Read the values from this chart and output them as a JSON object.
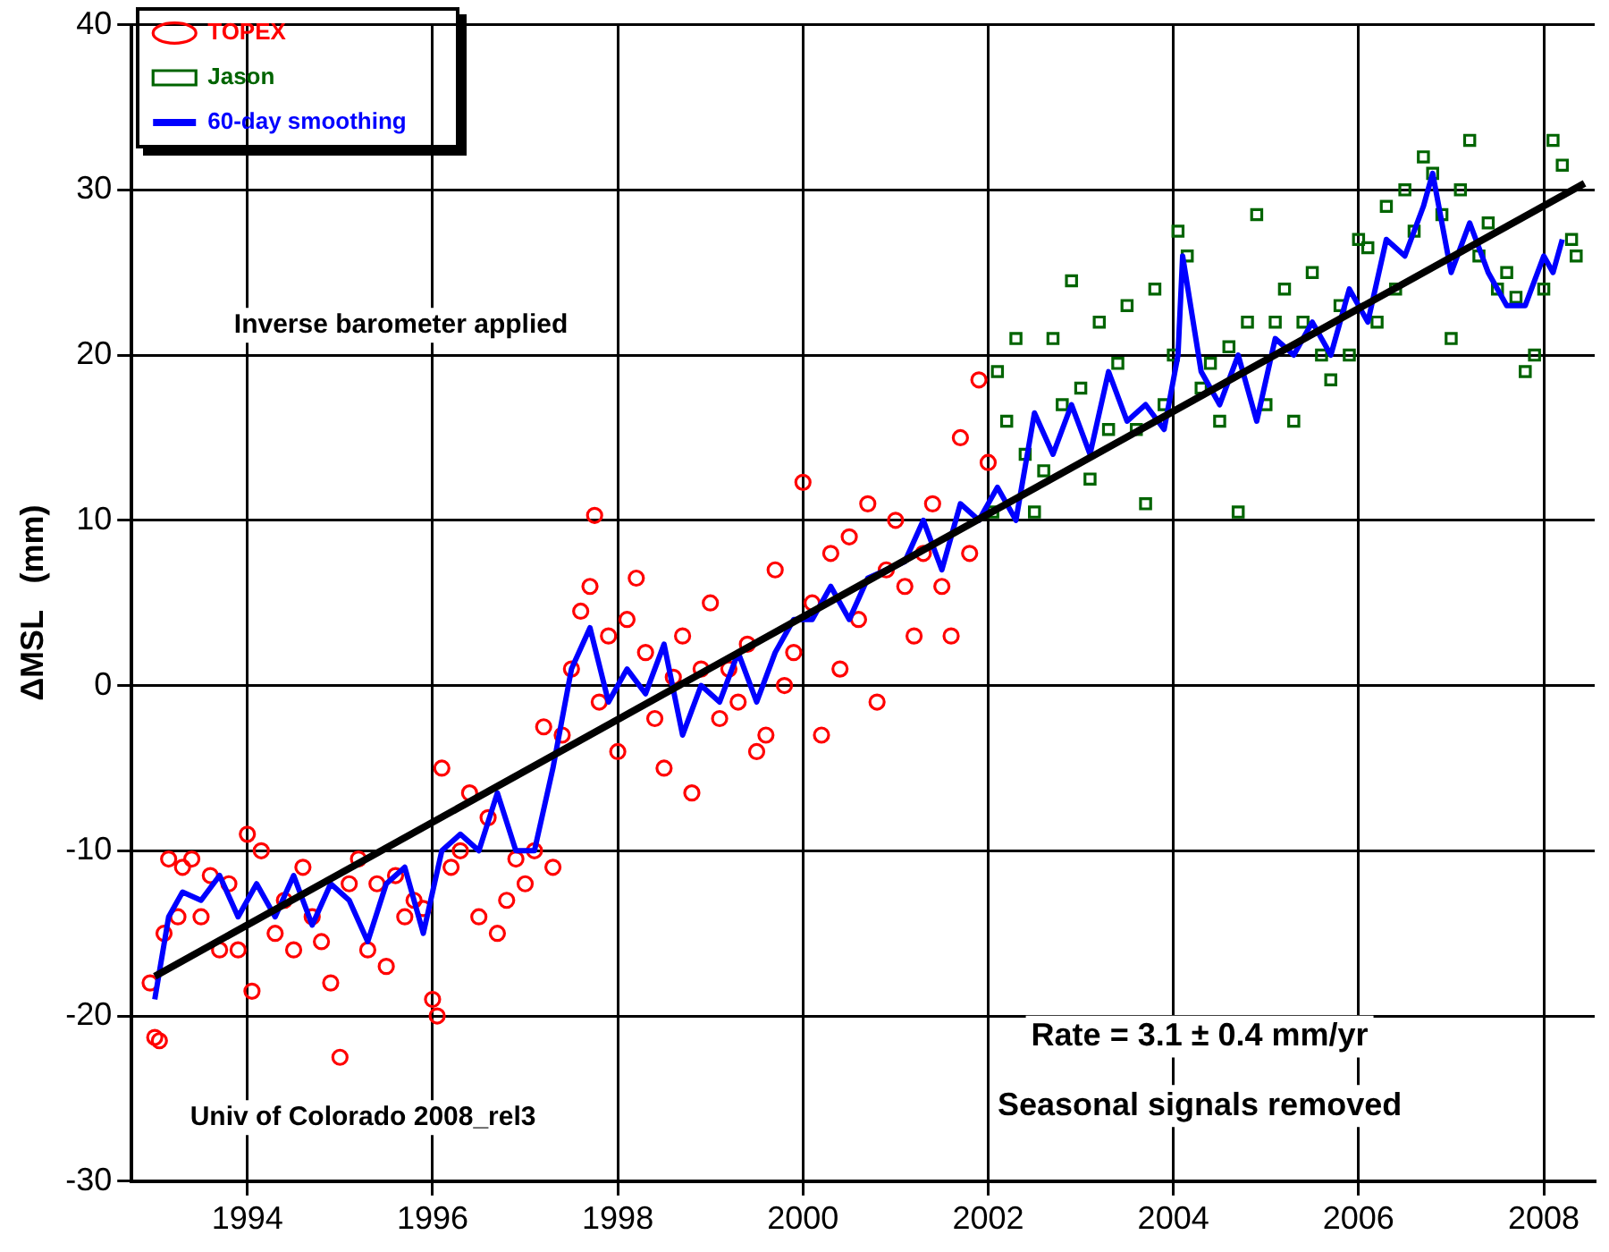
{
  "chart_data": {
    "type": "scatter",
    "ylabel": "ΔMSL   (mm)",
    "xlim": [
      1992.75,
      2008.55
    ],
    "xticks": [
      1994,
      1996,
      1998,
      2000,
      2002,
      2004,
      2006,
      2008
    ],
    "ylim": [
      -30,
      40
    ],
    "yticks": [
      -30,
      -20,
      -10,
      0,
      10,
      20,
      30,
      40
    ],
    "grid": true,
    "legend": "top left",
    "annotations": [
      "Inverse barometer applied",
      "Rate = 3.1 ± 0.4 mm/yr",
      "Seasonal signals removed",
      "Univ of Colorado 2008_rel3"
    ],
    "series": [
      {
        "name": "TOPEX",
        "marker": "circle",
        "color": "#ff0000",
        "x": [
          1992.95,
          1993.0,
          1993.05,
          1993.1,
          1993.15,
          1993.25,
          1993.3,
          1993.4,
          1993.5,
          1993.6,
          1993.7,
          1993.8,
          1993.9,
          1994.0,
          1994.05,
          1994.15,
          1994.3,
          1994.4,
          1994.5,
          1994.6,
          1994.7,
          1994.8,
          1994.9,
          1995.0,
          1995.1,
          1995.2,
          1995.3,
          1995.4,
          1995.5,
          1995.6,
          1995.7,
          1995.8,
          1995.9,
          1996.0,
          1996.05,
          1996.1,
          1996.2,
          1996.3,
          1996.4,
          1996.5,
          1996.6,
          1996.7,
          1996.8,
          1996.9,
          1997.0,
          1997.1,
          1997.2,
          1997.3,
          1997.4,
          1997.5,
          1997.6,
          1997.7,
          1997.75,
          1997.8,
          1997.9,
          1998.0,
          1998.1,
          1998.2,
          1998.3,
          1998.4,
          1998.5,
          1998.6,
          1998.7,
          1998.8,
          1998.9,
          1999.0,
          1999.1,
          1999.2,
          1999.3,
          1999.4,
          1999.5,
          1999.6,
          1999.7,
          1999.8,
          1999.9,
          2000.0,
          2000.1,
          2000.2,
          2000.3,
          2000.4,
          2000.5,
          2000.6,
          2000.7,
          2000.8,
          2000.9,
          2001.0,
          2001.1,
          2001.2,
          2001.3,
          2001.4,
          2001.5,
          2001.6,
          2001.7,
          2001.8,
          2001.9,
          2002.0
        ],
        "values": [
          -18,
          -21.3,
          -21.5,
          -15,
          -10.5,
          -14,
          -11,
          -10.5,
          -14,
          -11.5,
          -16,
          -12,
          -16,
          -9,
          -18.5,
          -10,
          -15,
          -13,
          -16,
          -11,
          -14,
          -15.5,
          -18,
          -22.5,
          -12,
          -10.5,
          -16,
          -12,
          -17,
          -11.5,
          -14,
          -13,
          -13.5,
          -19,
          -20,
          -5,
          -11,
          -10,
          -6.5,
          -14,
          -8,
          -15,
          -13,
          -10.5,
          -12,
          -10,
          -2.5,
          -11,
          -3,
          1,
          4.5,
          6,
          10.3,
          -1,
          3,
          -4,
          4,
          6.5,
          2,
          -2,
          -5,
          0.5,
          3,
          -6.5,
          1,
          5,
          -2,
          1,
          -1,
          2.5,
          -4,
          -3,
          7,
          0,
          2,
          12.3,
          5,
          -3,
          8,
          1,
          9,
          4,
          11,
          -1,
          7,
          10,
          6,
          3,
          8,
          11,
          6,
          3,
          15,
          8,
          18.5,
          13.5
        ]
      },
      {
        "name": "Jason",
        "marker": "square",
        "color": "#006400",
        "x": [
          2002.05,
          2002.1,
          2002.2,
          2002.3,
          2002.4,
          2002.5,
          2002.6,
          2002.7,
          2002.8,
          2002.9,
          2003.0,
          2003.1,
          2003.2,
          2003.3,
          2003.4,
          2003.5,
          2003.6,
          2003.7,
          2003.8,
          2003.9,
          2004.0,
          2004.05,
          2004.15,
          2004.3,
          2004.4,
          2004.5,
          2004.6,
          2004.7,
          2004.8,
          2004.9,
          2005.0,
          2005.1,
          2005.2,
          2005.3,
          2005.4,
          2005.5,
          2005.6,
          2005.7,
          2005.8,
          2005.9,
          2006.0,
          2006.1,
          2006.2,
          2006.3,
          2006.4,
          2006.5,
          2006.6,
          2006.7,
          2006.8,
          2006.9,
          2007.0,
          2007.1,
          2007.2,
          2007.3,
          2007.4,
          2007.5,
          2007.6,
          2007.7,
          2007.8,
          2007.9,
          2008.0,
          2008.1,
          2008.2,
          2008.3,
          2008.35
        ],
        "values": [
          10.5,
          19,
          16,
          21,
          14,
          10.5,
          13,
          21,
          17,
          24.5,
          18,
          12.5,
          22,
          15.5,
          19.5,
          23,
          15.5,
          11,
          24,
          17,
          20,
          27.5,
          26,
          18,
          19.5,
          16,
          20.5,
          10.5,
          22,
          28.5,
          17,
          22,
          24,
          16,
          22,
          25,
          20,
          18.5,
          23,
          20,
          27,
          26.5,
          22,
          29,
          24,
          30,
          27.5,
          32,
          31,
          28.5,
          21,
          30,
          33,
          26,
          28,
          24,
          25,
          23.5,
          19,
          20,
          24,
          33,
          31.5,
          27,
          26
        ]
      },
      {
        "name": "60-day smoothing",
        "type": "line",
        "marker": "none",
        "color": "#0000ff",
        "x": [
          1993.0,
          1993.15,
          1993.3,
          1993.5,
          1993.7,
          1993.9,
          1994.1,
          1994.3,
          1994.5,
          1994.7,
          1994.9,
          1995.1,
          1995.3,
          1995.5,
          1995.7,
          1995.9,
          1996.1,
          1996.3,
          1996.5,
          1996.7,
          1996.9,
          1997.1,
          1997.3,
          1997.5,
          1997.7,
          1997.9,
          1998.1,
          1998.3,
          1998.5,
          1998.7,
          1998.9,
          1999.1,
          1999.3,
          1999.5,
          1999.7,
          1999.9,
          2000.1,
          2000.3,
          2000.5,
          2000.7,
          2000.9,
          2001.1,
          2001.3,
          2001.5,
          2001.7,
          2001.9,
          2002.1,
          2002.3,
          2002.5,
          2002.7,
          2002.9,
          2003.1,
          2003.3,
          2003.5,
          2003.7,
          2003.9,
          2004.05,
          2004.1,
          2004.3,
          2004.5,
          2004.7,
          2004.9,
          2005.1,
          2005.3,
          2005.5,
          2005.7,
          2005.9,
          2006.1,
          2006.3,
          2006.5,
          2006.7,
          2006.8,
          2007.0,
          2007.2,
          2007.4,
          2007.6,
          2007.8,
          2008.0,
          2008.1,
          2008.2
        ],
        "values": [
          -19,
          -14,
          -12.5,
          -13,
          -11.5,
          -14,
          -12,
          -14,
          -11.5,
          -14.5,
          -12,
          -13,
          -15.5,
          -12,
          -11,
          -15,
          -10,
          -9,
          -10,
          -6.5,
          -10,
          -10,
          -5,
          1,
          3.5,
          -1,
          1,
          -0.5,
          2.5,
          -3,
          0,
          -1,
          2,
          -1,
          2,
          4,
          4,
          6,
          4,
          6.5,
          7,
          7.5,
          10,
          7,
          11,
          10,
          12,
          10,
          16.5,
          14,
          17,
          14,
          19,
          16,
          17,
          15.5,
          20,
          26,
          19,
          17,
          20,
          16,
          21,
          20,
          22,
          20,
          24,
          22,
          27,
          26,
          29,
          31,
          25,
          28,
          25,
          23,
          23,
          26,
          25,
          27
        ]
      },
      {
        "type": "line",
        "marker": "none",
        "color": "#000000",
        "x": [
          1993.0,
          2008.44
        ],
        "values": [
          -17.6,
          30.4
        ]
      }
    ]
  }
}
